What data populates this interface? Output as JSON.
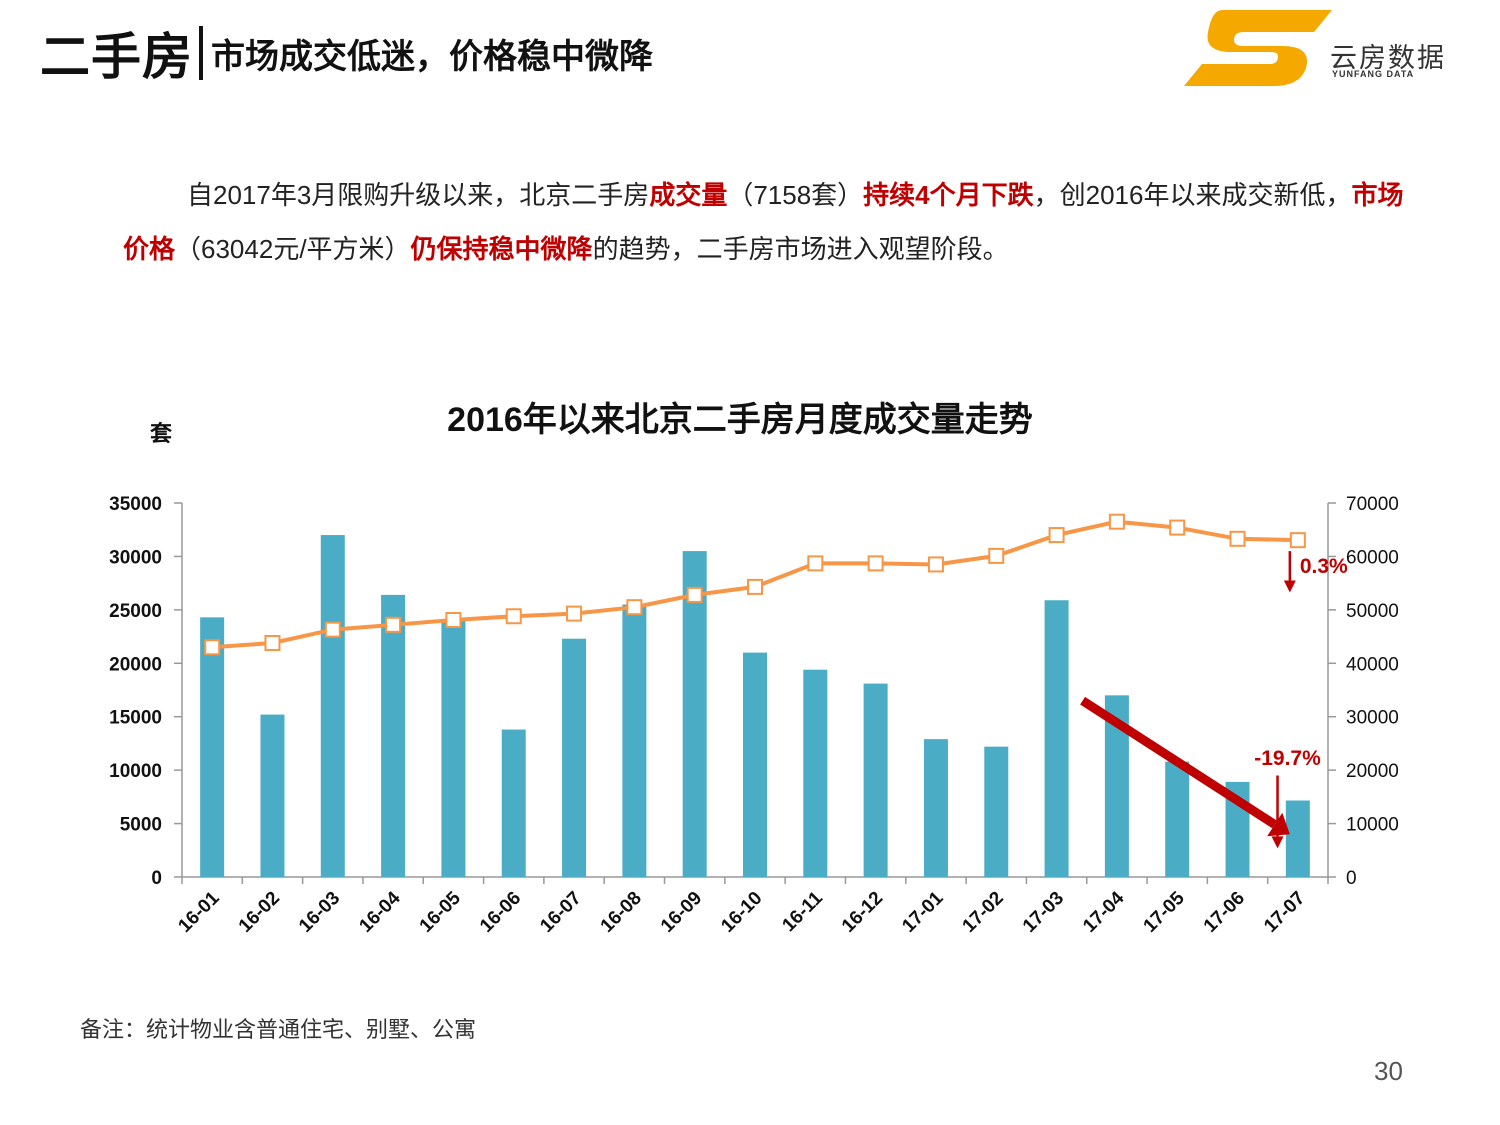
{
  "header": {
    "main_title": "二手房",
    "sub_title": "市场成交低迷，价格稳中微降"
  },
  "logo": {
    "name": "云房数据",
    "sub": "YUNFANG DATA",
    "color": "#f5a800"
  },
  "summary": {
    "p1": "自2017年3月限购升级以来，北京二手房",
    "hl1": "成交量",
    "p2": "（7158套）",
    "hl2": "持续4个月下跌",
    "p3": "，创2016年以来成交新低，",
    "hl3": "市场价格",
    "p4": "（63042元/平方米）",
    "hl4": "仍保持稳中微降",
    "p5": "的趋势，二手房市场进入观望阶段。"
  },
  "chart_data": {
    "type": "bar+line",
    "title": "2016年以来北京二手房月度成交量走势",
    "ylabel_left": "套",
    "categories": [
      "16-01",
      "16-02",
      "16-03",
      "16-04",
      "16-05",
      "16-06",
      "16-07",
      "16-08",
      "16-09",
      "16-10",
      "16-11",
      "16-12",
      "17-01",
      "17-02",
      "17-03",
      "17-04",
      "17-05",
      "17-06",
      "17-07"
    ],
    "series": [
      {
        "type": "bar",
        "axis": "left",
        "color": "#4bacc6",
        "values": [
          24300,
          15200,
          32000,
          26400,
          24000,
          13800,
          22300,
          25500,
          30500,
          21000,
          19400,
          18100,
          12900,
          12200,
          25900,
          17000,
          10800,
          8900,
          7158
        ]
      },
      {
        "type": "line",
        "axis": "right",
        "color": "#f79646",
        "values": [
          43000,
          43800,
          46300,
          47200,
          48100,
          48800,
          49300,
          50500,
          52800,
          54300,
          58700,
          58700,
          58500,
          60100,
          64000,
          66500,
          65400,
          63300,
          63042
        ]
      }
    ],
    "y_left": {
      "min": 0,
      "max": 35000,
      "ticks": [
        "0",
        "5000",
        "10000",
        "15000",
        "20000",
        "25000",
        "30000",
        "35000"
      ]
    },
    "y_right": {
      "min": 0,
      "max": 70000,
      "ticks": [
        "0",
        "10000",
        "20000",
        "30000",
        "40000",
        "50000",
        "60000",
        "70000"
      ]
    },
    "annotations": {
      "price_change": "0.3%",
      "volume_change": "-19.7%"
    },
    "annotation_color": "#c00000"
  },
  "note": "备注：统计物业含普通住宅、别墅、公寓",
  "page_number": "30"
}
